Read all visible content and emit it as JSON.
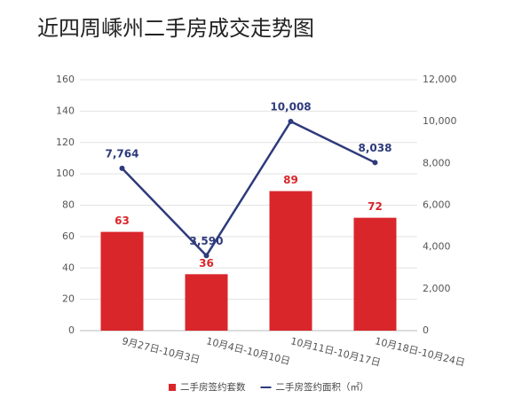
{
  "chart_data": {
    "type": "bar",
    "title": "近四周嵊州二手房成交走势图",
    "categories": [
      "9月27日-10月3日",
      "10月4日-10月10日",
      "10月11日-10月17日",
      "10月18日-10月24日"
    ],
    "series": [
      {
        "name": "二手房签约套数",
        "type": "bar",
        "color": "#d9262b",
        "values": [
          63,
          36,
          89,
          72
        ]
      },
      {
        "name": "二手房签约面积（㎡）",
        "type": "line",
        "axis": "y2",
        "color": "#2e3a7c",
        "values": [
          7764,
          3590,
          10008,
          8038
        ],
        "value_labels": [
          "7,764",
          "3,590",
          "10,008",
          "8,038"
        ]
      }
    ],
    "ylim": [
      0,
      160
    ],
    "yticks": [
      0,
      20,
      40,
      60,
      80,
      100,
      120,
      140,
      160
    ],
    "y2lim": [
      0,
      12000
    ],
    "y2ticks": [
      0,
      {
        "value": 2000,
        "label": "2,000"
      },
      {
        "value": 4000,
        "label": "4,000"
      },
      {
        "value": 6000,
        "label": "6,000"
      },
      {
        "value": 8000,
        "label": "8,000"
      },
      {
        "value": 10000,
        "label": "10,000"
      },
      {
        "value": 12000,
        "label": "12,000"
      }
    ],
    "grid": true,
    "legend": "bottom"
  }
}
